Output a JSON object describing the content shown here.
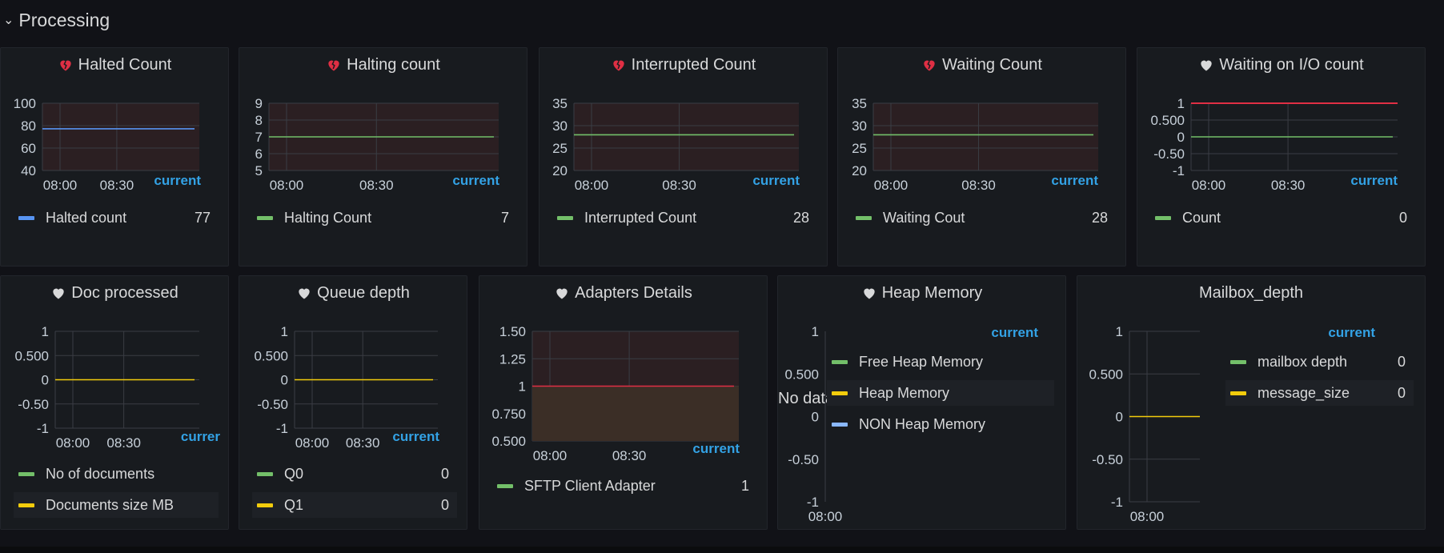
{
  "row": {
    "title": "Processing"
  },
  "legend_header": "current",
  "colors": {
    "blue": "#5794f2",
    "green": "#73bf69",
    "yellow": "#f2cc0c",
    "red": "#e02f44",
    "cyan": "#8ab8ff",
    "tick": "#c7d0d9",
    "grid": "#3a3d44"
  },
  "panels": [
    {
      "id": "halted",
      "title": "Halted Count",
      "icon": "broken-heart-icon",
      "ticks_y": [
        "100",
        "80",
        "60",
        "40"
      ],
      "ticks_x": [
        "08:00",
        "08:30"
      ],
      "legend": [
        {
          "name": "Halted count",
          "value": "77",
          "color": "blue"
        }
      ]
    },
    {
      "id": "halting",
      "title": "Halting count",
      "icon": "broken-heart-icon",
      "ticks_y": [
        "9",
        "8",
        "7",
        "6",
        "5"
      ],
      "ticks_x": [
        "08:00",
        "08:30"
      ],
      "legend": [
        {
          "name": "Halting Count",
          "value": "7",
          "color": "green"
        }
      ]
    },
    {
      "id": "interrupted",
      "title": "Interrupted Count",
      "icon": "broken-heart-icon",
      "ticks_y": [
        "35",
        "30",
        "25",
        "20"
      ],
      "ticks_x": [
        "08:00",
        "08:30"
      ],
      "legend": [
        {
          "name": "Interrupted Count",
          "value": "28",
          "color": "green"
        }
      ]
    },
    {
      "id": "waiting",
      "title": "Waiting Count",
      "icon": "broken-heart-icon",
      "ticks_y": [
        "35",
        "30",
        "25",
        "20"
      ],
      "ticks_x": [
        "08:00",
        "08:30"
      ],
      "legend": [
        {
          "name": "Waiting Cout",
          "value": "28",
          "color": "green"
        }
      ]
    },
    {
      "id": "waitingio",
      "title": "Waiting on I/O count",
      "icon": "heart-icon",
      "ticks_y": [
        "1",
        "0.500",
        "0",
        "-0.50",
        "-1"
      ],
      "ticks_x": [
        "08:00",
        "08:30"
      ],
      "legend": [
        {
          "name": "Count",
          "value": "0",
          "color": "green"
        }
      ]
    },
    {
      "id": "docs",
      "title": "Doc processed",
      "icon": "heart-icon",
      "ticks_y": [
        "1",
        "0.500",
        "0",
        "-0.50",
        "-1"
      ],
      "ticks_x": [
        "08:00",
        "08:30"
      ],
      "legend_header": "currer",
      "legend": [
        {
          "name": "No of documents",
          "value": "",
          "color": "green"
        },
        {
          "name": "Documents size MB",
          "value": "",
          "color": "yellow"
        }
      ]
    },
    {
      "id": "queue",
      "title": "Queue depth",
      "icon": "heart-icon",
      "ticks_y": [
        "1",
        "0.500",
        "0",
        "-0.50",
        "-1"
      ],
      "ticks_x": [
        "08:00",
        "08:30"
      ],
      "legend": [
        {
          "name": "Q0",
          "value": "0",
          "color": "green"
        },
        {
          "name": "Q1",
          "value": "0",
          "color": "yellow"
        }
      ]
    },
    {
      "id": "adapters",
      "title": "Adapters Details",
      "icon": "heart-icon",
      "ticks_y": [
        "1.50",
        "1.25",
        "1",
        "0.750",
        "0.500"
      ],
      "ticks_x": [
        "08:00",
        "08:30"
      ],
      "legend": [
        {
          "name": "SFTP Client Adapter",
          "value": "1",
          "color": "green"
        }
      ]
    },
    {
      "id": "heap",
      "title": "Heap Memory",
      "icon": "heart-icon",
      "ticks_y": [
        "1",
        "0.500",
        "0",
        "-0.50",
        "-1"
      ],
      "ticks_x": [
        "08:00"
      ],
      "no_data": "No data",
      "legend": [
        {
          "name": "Free Heap Memory",
          "value": "",
          "color": "green"
        },
        {
          "name": "Heap Memory",
          "value": "",
          "color": "yellow"
        },
        {
          "name": "NON Heap Memory",
          "value": "",
          "color": "cyan"
        }
      ]
    },
    {
      "id": "mailbox",
      "title": "Mailbox_depth",
      "icon": "",
      "ticks_y": [
        "1",
        "0.500",
        "0",
        "-0.50",
        "-1"
      ],
      "ticks_x": [
        "08:00"
      ],
      "legend": [
        {
          "name": "mailbox depth",
          "value": "0",
          "color": "green"
        },
        {
          "name": "message_size",
          "value": "0",
          "color": "yellow"
        }
      ]
    }
  ]
}
